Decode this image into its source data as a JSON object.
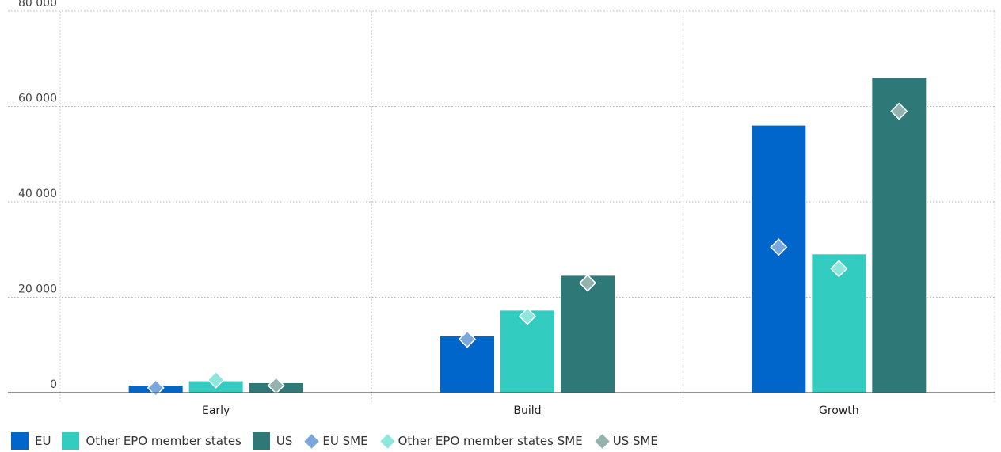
{
  "chart_data": {
    "type": "bar",
    "categories": [
      "Early",
      "Build",
      "Growth"
    ],
    "ylim": [
      0,
      80000
    ],
    "yticks": [
      0,
      20000,
      40000,
      60000,
      80000
    ],
    "ytick_labels": [
      "0",
      "20 000",
      "40 000",
      "60 000",
      "80 000"
    ],
    "grid": true,
    "legend_position": "bottom-left",
    "series": [
      {
        "name": "EU",
        "kind": "bar",
        "color": "#0066cc",
        "values": [
          1500,
          11800,
          56000
        ]
      },
      {
        "name": "Other EPO member states",
        "kind": "bar",
        "color": "#33ccc0",
        "values": [
          2400,
          17200,
          29000
        ]
      },
      {
        "name": "US",
        "kind": "bar",
        "color": "#2e7878",
        "values": [
          2000,
          24500,
          66000
        ]
      },
      {
        "name": "EU SME",
        "kind": "marker",
        "color": "#7aa8dd",
        "values": [
          1000,
          11200,
          30500
        ]
      },
      {
        "name": "Other EPO member states SME",
        "kind": "marker",
        "color": "#8ee6dc",
        "values": [
          2700,
          16000,
          26000
        ]
      },
      {
        "name": "US SME",
        "kind": "marker",
        "color": "#94b3ae",
        "values": [
          1500,
          23000,
          59000
        ]
      }
    ]
  }
}
